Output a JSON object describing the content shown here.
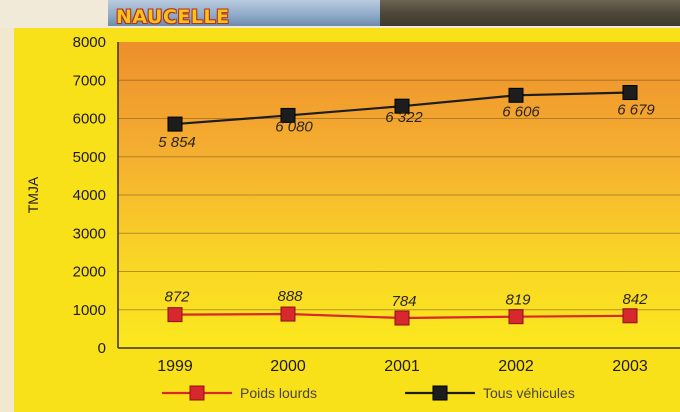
{
  "header": {
    "title": "NAUCELLE"
  },
  "chart_data": {
    "type": "line",
    "title": "NAUCELLE",
    "xlabel": "",
    "ylabel": "TMJA",
    "categories": [
      "1999",
      "2000",
      "2001",
      "2002",
      "2003"
    ],
    "ylim": [
      0,
      8000
    ],
    "yticks": [
      0,
      1000,
      2000,
      3000,
      4000,
      5000,
      6000,
      7000,
      8000
    ],
    "ytick_labels": [
      "0",
      "1000",
      "2000",
      "3000",
      "4000",
      "5000",
      "6000",
      "7000",
      "8000"
    ],
    "grid": true,
    "legend_position": "bottom",
    "series": [
      {
        "name": "Poids lourds",
        "values": [
          872,
          888,
          784,
          819,
          842
        ],
        "labels": [
          "872",
          "888",
          "784",
          "819",
          "842"
        ],
        "color": "#d6282d"
      },
      {
        "name": "Tous véhicules",
        "values": [
          5854,
          6080,
          6322,
          6606,
          6679
        ],
        "labels": [
          "5 854",
          "6 080",
          "6 322",
          "6 606",
          "6 679"
        ],
        "color": "#1d1d1d"
      }
    ]
  }
}
